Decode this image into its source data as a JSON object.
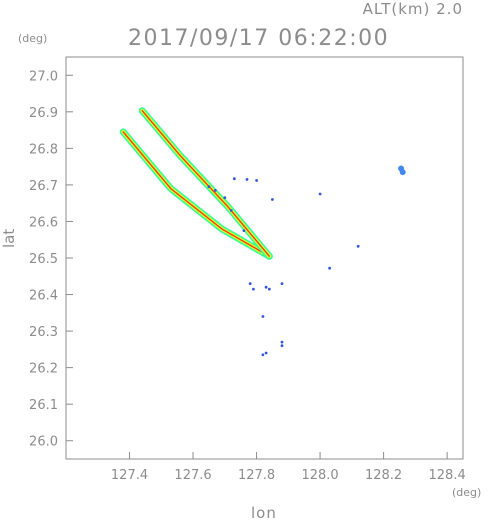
{
  "chart_data": {
    "type": "scatter",
    "title": "2017/09/17 06:22:00",
    "subtitle": "ALT(km)  2.0",
    "xlabel": "lon",
    "ylabel": "lat",
    "x_unit": "(deg)",
    "y_unit": "(deg)",
    "xlim": [
      127.2,
      128.45
    ],
    "ylim": [
      25.95,
      27.05
    ],
    "x_ticks": [
      "127.4",
      "127.6",
      "127.8",
      "128.0",
      "128.2",
      "128.4"
    ],
    "x_tick_values": [
      127.4,
      127.6,
      127.8,
      128.0,
      128.2,
      128.4
    ],
    "y_ticks": [
      "27.0",
      "26.9",
      "26.8",
      "26.7",
      "26.6",
      "26.5",
      "26.4",
      "26.3",
      "26.2",
      "26.1",
      "26.0"
    ],
    "y_tick_values": [
      27.0,
      26.9,
      26.8,
      26.7,
      26.6,
      26.5,
      26.4,
      26.3,
      26.2,
      26.1,
      26.0
    ],
    "grid": false,
    "colors": {
      "axis": "#8c8c8c",
      "outer_band": "#33ff99",
      "middle_band": "#ccff33",
      "core_band": "#ff3300",
      "echo_blue": "#3355dd",
      "echo_light": "#4488ee"
    },
    "series": [
      {
        "values": [
          [
            127.38,
            26.845
          ],
          [
            127.53,
            26.69
          ],
          [
            127.69,
            26.58
          ],
          [
            127.84,
            26.505
          ]
        ]
      },
      {
        "values": [
          [
            127.44,
            26.903
          ],
          [
            127.56,
            26.78
          ],
          [
            127.71,
            26.64
          ],
          [
            127.84,
            26.505
          ]
        ]
      },
      {
        "values": [
          [
            127.65,
            26.695
          ],
          [
            127.67,
            26.685
          ],
          [
            127.7,
            26.665
          ],
          [
            127.72,
            26.63
          ],
          [
            127.76,
            26.575
          ],
          [
            127.73,
            26.717
          ],
          [
            127.77,
            26.715
          ],
          [
            127.8,
            26.712
          ],
          [
            127.85,
            26.66
          ],
          [
            127.78,
            26.43
          ],
          [
            127.79,
            26.415
          ],
          [
            127.83,
            26.42
          ],
          [
            127.84,
            26.415
          ],
          [
            127.88,
            26.43
          ],
          [
            127.82,
            26.34
          ],
          [
            127.88,
            26.27
          ],
          [
            127.88,
            26.26
          ],
          [
            127.83,
            26.24
          ],
          [
            127.82,
            26.235
          ],
          [
            128.0,
            26.675
          ],
          [
            128.03,
            26.472
          ],
          [
            128.12,
            26.532
          ],
          [
            128.255,
            26.745
          ],
          [
            128.26,
            26.735
          ]
        ]
      }
    ]
  }
}
